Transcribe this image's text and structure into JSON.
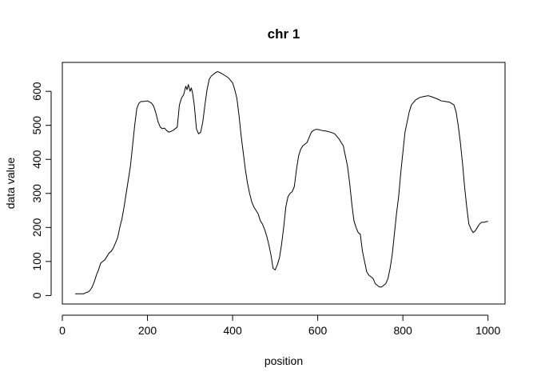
{
  "chart_data": {
    "type": "line",
    "title": "chr 1",
    "xlabel": "position",
    "ylabel": "data value",
    "xlim": [
      0,
      1040
    ],
    "ylim": [
      -25,
      685
    ],
    "xticks": [
      0,
      200,
      400,
      600,
      800,
      1000
    ],
    "yticks": [
      0,
      100,
      200,
      300,
      400,
      500,
      600
    ],
    "grid": false,
    "legend": "none",
    "series": [
      {
        "color": "#000000",
        "x": [
          30,
          40,
          50,
          55,
          60,
          65,
          70,
          75,
          80,
          85,
          90,
          95,
          100,
          105,
          110,
          115,
          120,
          125,
          130,
          135,
          140,
          145,
          150,
          155,
          160,
          165,
          170,
          175,
          180,
          185,
          190,
          200,
          210,
          215,
          220,
          225,
          230,
          235,
          240,
          245,
          250,
          255,
          260,
          265,
          270,
          275,
          280,
          285,
          290,
          293,
          296,
          300,
          303,
          306,
          310,
          315,
          320,
          325,
          330,
          335,
          340,
          345,
          350,
          355,
          360,
          365,
          370,
          375,
          380,
          390,
          400,
          405,
          410,
          415,
          420,
          425,
          430,
          435,
          440,
          445,
          450,
          455,
          460,
          465,
          470,
          475,
          480,
          485,
          490,
          495,
          500,
          505,
          510,
          515,
          520,
          525,
          530,
          535,
          540,
          545,
          550,
          555,
          560,
          565,
          570,
          575,
          580,
          585,
          590,
          595,
          600,
          610,
          620,
          630,
          640,
          650,
          660,
          665,
          670,
          675,
          680,
          685,
          690,
          695,
          700,
          705,
          710,
          715,
          720,
          725,
          730,
          735,
          740,
          745,
          750,
          755,
          760,
          765,
          770,
          775,
          780,
          785,
          790,
          795,
          800,
          805,
          810,
          815,
          820,
          830,
          840,
          850,
          860,
          870,
          880,
          890,
          900,
          910,
          920,
          925,
          930,
          935,
          940,
          945,
          950,
          955,
          960,
          965,
          970,
          975,
          980,
          985,
          990,
          1000
        ],
        "y": [
          5,
          5,
          5,
          8,
          10,
          15,
          25,
          40,
          60,
          75,
          95,
          100,
          105,
          115,
          125,
          130,
          140,
          155,
          170,
          200,
          225,
          260,
          300,
          340,
          380,
          440,
          500,
          550,
          565,
          570,
          570,
          572,
          565,
          555,
          535,
          510,
          495,
          490,
          492,
          485,
          480,
          482,
          485,
          490,
          495,
          560,
          580,
          590,
          615,
          605,
          620,
          600,
          610,
          595,
          560,
          490,
          475,
          480,
          510,
          560,
          605,
          635,
          645,
          650,
          655,
          658,
          655,
          652,
          648,
          640,
          625,
          605,
          580,
          530,
          470,
          420,
          370,
          330,
          300,
          275,
          260,
          250,
          240,
          220,
          210,
          195,
          175,
          150,
          120,
          80,
          75,
          90,
          110,
          150,
          200,
          260,
          290,
          300,
          305,
          320,
          370,
          410,
          430,
          440,
          445,
          450,
          465,
          480,
          485,
          488,
          488,
          485,
          483,
          480,
          475,
          460,
          440,
          410,
          380,
          330,
          270,
          220,
          200,
          185,
          180,
          130,
          100,
          70,
          60,
          55,
          50,
          35,
          30,
          25,
          25,
          30,
          35,
          50,
          80,
          120,
          180,
          240,
          290,
          360,
          420,
          480,
          510,
          540,
          560,
          575,
          582,
          585,
          587,
          583,
          578,
          572,
          570,
          568,
          560,
          540,
          500,
          450,
          390,
          320,
          260,
          210,
          195,
          185,
          190,
          200,
          210,
          215,
          215,
          218
        ]
      }
    ]
  }
}
